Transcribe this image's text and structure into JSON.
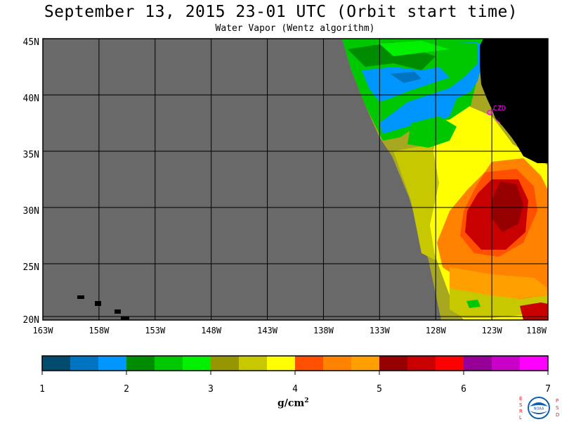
{
  "header": {
    "title": "September 13, 2015  23-01 UTC  (Orbit start time)",
    "subtitle": "Water Vapor (Wentz algorithm)"
  },
  "map": {
    "lat_labels": [
      "45N",
      "40N",
      "35N",
      "30N",
      "25N",
      "20N"
    ],
    "lon_labels": [
      "163W",
      "158W",
      "153W",
      "148W",
      "143W",
      "138W",
      "133W",
      "128W",
      "123W",
      "118W"
    ],
    "station_label": "CZD",
    "colors": {
      "nodata": "#696969",
      "land": "#000000",
      "grid": "#000000",
      "station": "#ff00ff"
    }
  },
  "colorbar": {
    "tick_labels": [
      "1",
      "2",
      "3",
      "4",
      "5",
      "6",
      "7"
    ],
    "unit": "g/cm",
    "unit_exp": "2",
    "colors": [
      "#004b6e",
      "#0073c1",
      "#0096ff",
      "#008c00",
      "#00c800",
      "#00f000",
      "#969600",
      "#c8c800",
      "#ffff00",
      "#ff5000",
      "#ff8200",
      "#ffa000",
      "#960000",
      "#c80000",
      "#ff0000",
      "#960096",
      "#c800c8",
      "#ff00ff"
    ]
  },
  "logo": {
    "left_letters": [
      "E",
      "S",
      "R",
      "L"
    ],
    "right_letters": [
      "P",
      "S",
      "D"
    ],
    "center_text": "NOAA",
    "left_color": "#e02020",
    "right_color": "#e02020",
    "emblem_color": "#1060b0"
  }
}
